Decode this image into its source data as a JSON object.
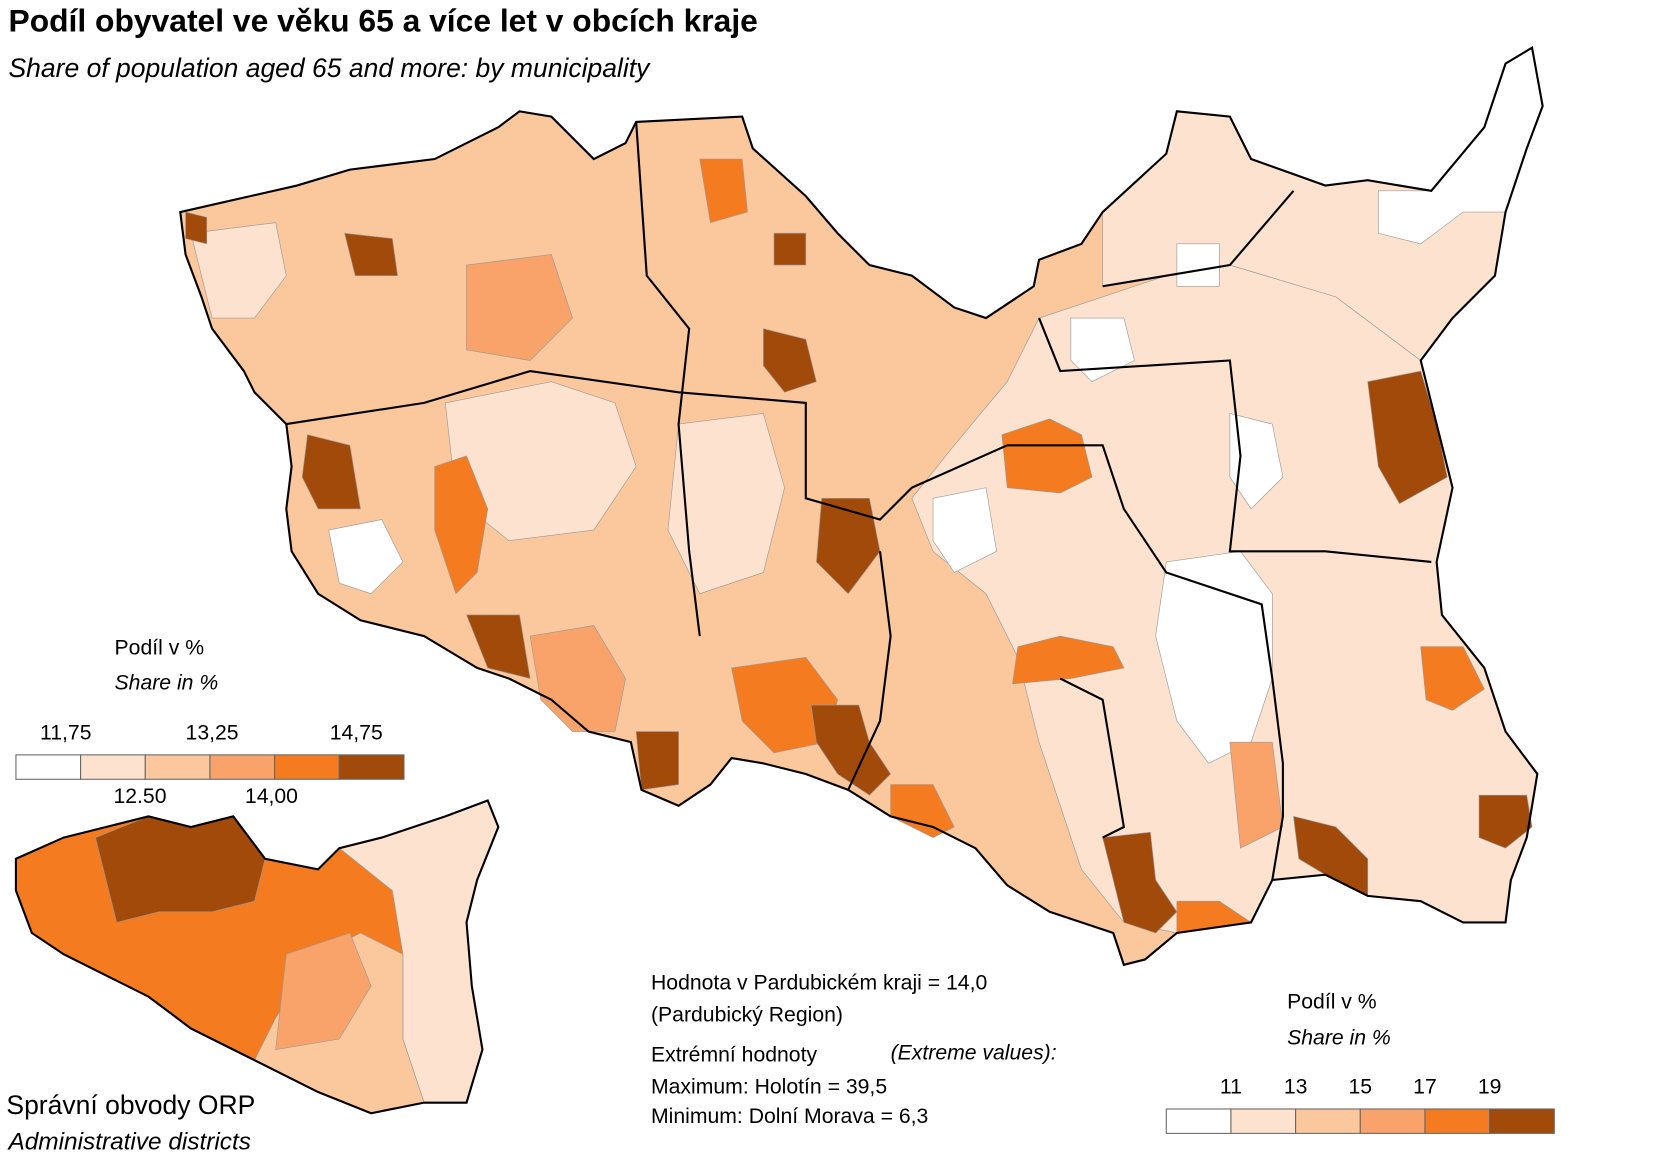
{
  "header": {
    "title": "Podíl obyvatel ve věku 65 a více let v obcích kraje",
    "subtitle": "Share of population aged 65 and more: by municipality"
  },
  "main_legend": {
    "title": "Podíl v %",
    "subtitle": "Share in %",
    "breaks_top": [
      "11,75",
      "13,25",
      "14,75"
    ],
    "breaks_bottom": [
      "12.50",
      "14,00"
    ],
    "colors": [
      "#ffffff",
      "#fde3cf",
      "#fbc79d",
      "#f9a36a",
      "#f47b20",
      "#a24a0a"
    ]
  },
  "inset": {
    "title": "Správní obvody  ORP",
    "subtitle": "Administrative districts"
  },
  "inset_legend": {
    "title": "Podíl v %",
    "subtitle": "Share in %",
    "breaks": [
      "11",
      "13",
      "15",
      "17",
      "19"
    ],
    "colors": [
      "#ffffff",
      "#fde3cf",
      "#fbc79d",
      "#f9a36a",
      "#f47b20",
      "#a24a0a"
    ]
  },
  "notes": {
    "region_value": "Hodnota v Pardubickém kraji = 14,0",
    "region_name": "(Pardubický Region)",
    "extremes": "Extrémní hodnoty",
    "extremes_en": "(Extreme values):",
    "maximum": "Maximum: Holotín = 39,5",
    "minimum": "Minimum: Dolní Morava = 6,3"
  }
}
